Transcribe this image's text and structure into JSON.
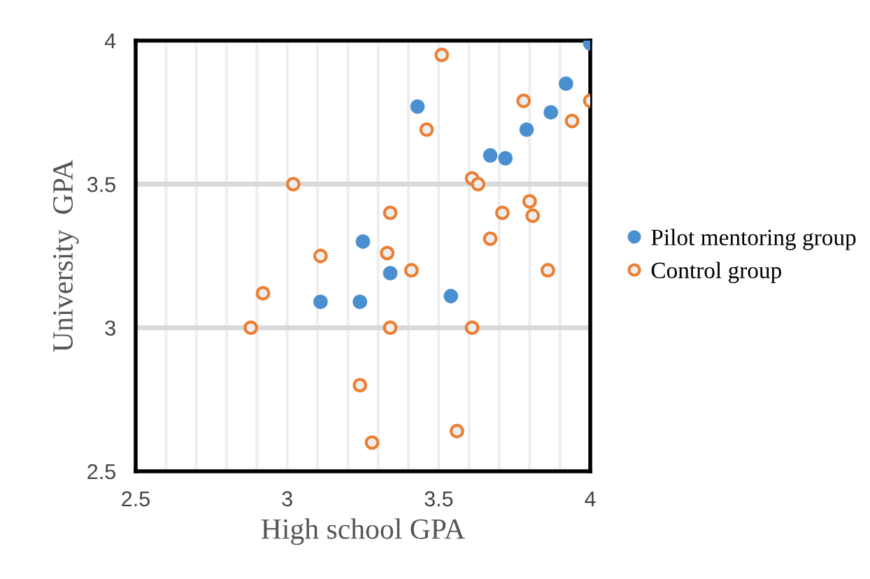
{
  "chart_data": {
    "type": "scatter",
    "xlabel": "High school GPA",
    "ylabel": "University  GPA",
    "xlim": [
      2.5,
      4
    ],
    "ylim": [
      2.5,
      4
    ],
    "xticks": [
      2.5,
      {
        "value": 2.6,
        "label": null
      },
      {
        "value": 2.7,
        "label": null
      },
      {
        "value": 2.8,
        "label": null
      },
      {
        "value": 2.9,
        "label": null
      },
      3,
      {
        "value": 3.1,
        "label": null
      },
      {
        "value": 3.2,
        "label": null
      },
      {
        "value": 3.3,
        "label": null
      },
      {
        "value": 3.4,
        "label": null
      },
      3.5,
      {
        "value": 3.6,
        "label": null
      },
      {
        "value": 3.7,
        "label": null
      },
      {
        "value": 3.8,
        "label": null
      },
      {
        "value": 3.9,
        "label": null
      },
      4
    ],
    "yticks": [
      2.5,
      3,
      3.5,
      4
    ],
    "grid": true,
    "legend": "right",
    "marker": "circle",
    "series": [
      {
        "name": "Pilot mentoring group",
        "color": "#4a90d0",
        "x": [
          4.0,
          3.92,
          3.87,
          3.79,
          3.67,
          3.72,
          3.43,
          3.25,
          3.34,
          3.11,
          3.24,
          3.54
        ],
        "values": [
          3.99,
          3.85,
          3.75,
          3.69,
          3.6,
          3.59,
          3.77,
          3.3,
          3.19,
          3.09,
          3.09,
          3.11
        ]
      },
      {
        "name": "Control group",
        "color": "#ed7d31",
        "x": [
          3.51,
          3.78,
          4.0,
          3.94,
          3.46,
          3.02,
          3.61,
          3.63,
          3.34,
          3.71,
          3.8,
          3.81,
          3.67,
          3.11,
          3.33,
          3.41,
          3.86,
          2.92,
          2.88,
          3.34,
          3.61,
          3.24,
          3.28,
          3.56
        ],
        "values": [
          3.95,
          3.79,
          3.79,
          3.72,
          3.69,
          3.5,
          3.52,
          3.5,
          3.4,
          3.4,
          3.44,
          3.39,
          3.31,
          3.25,
          3.26,
          3.2,
          3.2,
          3.12,
          3.0,
          3.0,
          3.0,
          2.8,
          2.6,
          2.64
        ]
      }
    ]
  }
}
